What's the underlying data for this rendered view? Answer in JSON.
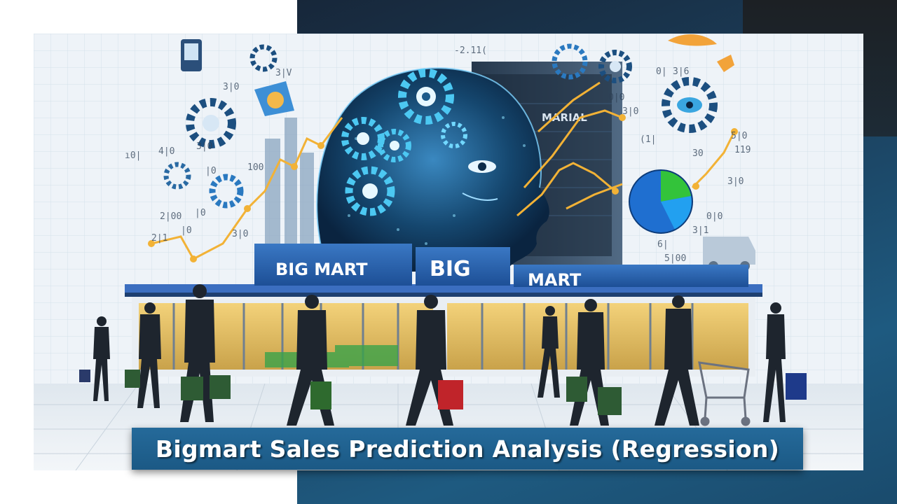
{
  "slide": {
    "title": "Bigmart Sales Prediction Analysis (Regression)"
  },
  "illustration": {
    "store_sign_left": "BIG MART",
    "store_sign_right_1": "BIG",
    "store_sign_right_2": "MART",
    "tower_sign": "MARIAL"
  },
  "colors": {
    "accent_blue": "#1e5a80",
    "banner_blue": "#256a9a",
    "dark_corner": "#1c2024"
  }
}
